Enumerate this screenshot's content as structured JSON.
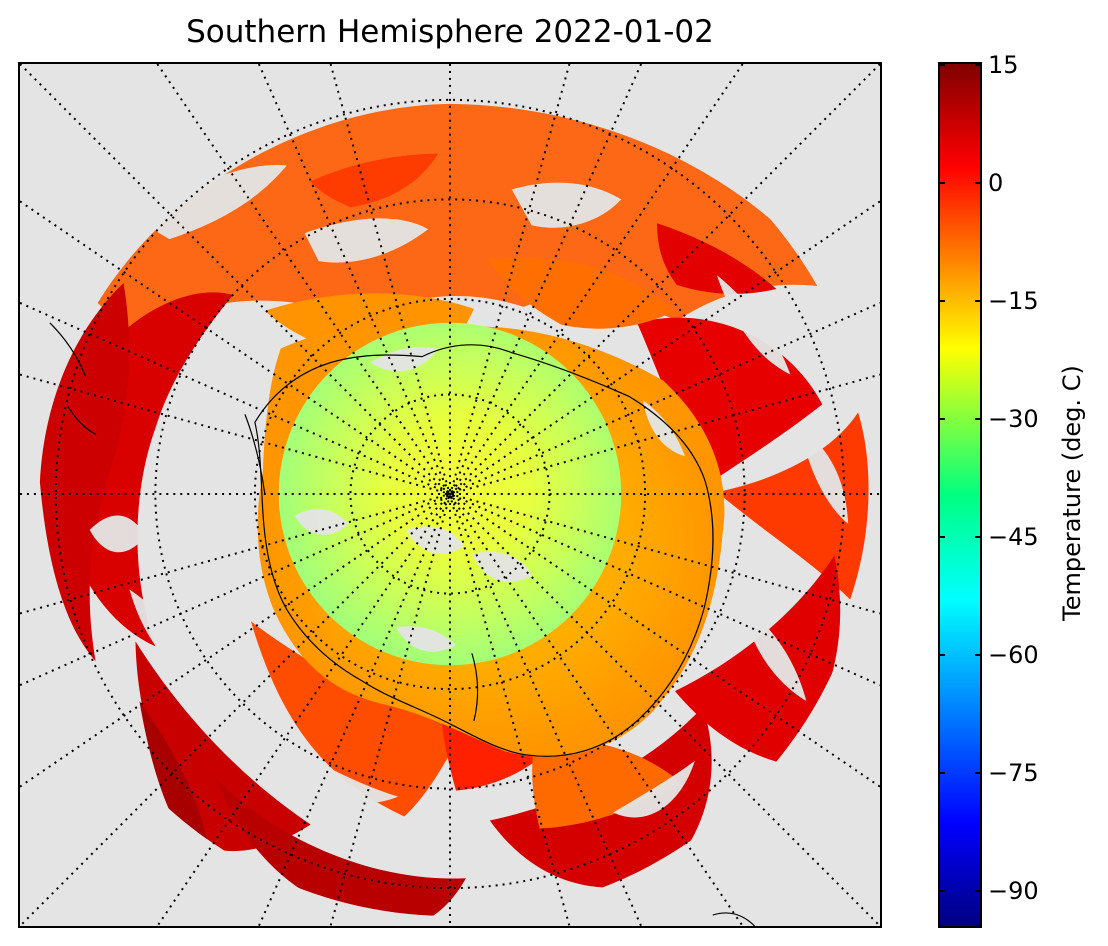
{
  "title": "Southern Hemisphere 2022-01-02",
  "map": {
    "projection": "south-polar-stereographic",
    "grid": "dotted meridians and parallels",
    "background_color": "#e4e4e4",
    "coastline_color": "#000000",
    "land_region": "Antarctica",
    "colormap": "jet"
  },
  "colorbar": {
    "label": "Temperature (deg. C)",
    "vmin": -95,
    "vmax": 15,
    "ticks": [
      {
        "value": 15,
        "label": "15"
      },
      {
        "value": 0,
        "label": "0"
      },
      {
        "value": -15,
        "label": "−15"
      },
      {
        "value": -30,
        "label": "−30"
      },
      {
        "value": -45,
        "label": "−45"
      },
      {
        "value": -60,
        "label": "−60"
      },
      {
        "value": -75,
        "label": "−75"
      },
      {
        "value": -90,
        "label": "−90"
      }
    ],
    "colors": [
      "#800000",
      "#ff0000",
      "#ffff00",
      "#00ff80",
      "#00ffff",
      "#0080ff",
      "#0000ff",
      "#000080"
    ]
  }
}
